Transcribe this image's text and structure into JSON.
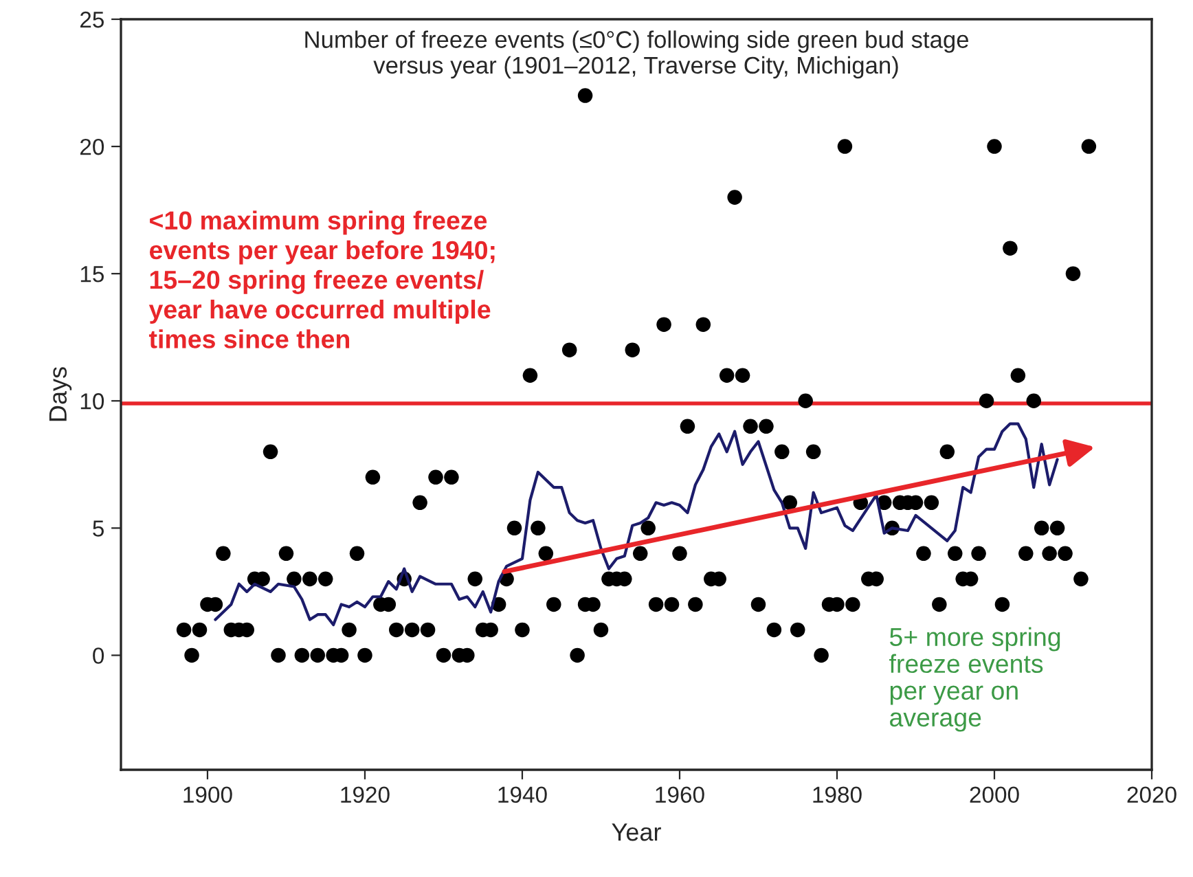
{
  "chart_data": {
    "type": "scatter",
    "title": "Number of freeze events (≤0°C) following side green bud stage\nversus year (1901–2012, Traverse City, Michigan)",
    "xlabel": "Year",
    "ylabel": "Days",
    "xlim": [
      1889,
      2020
    ],
    "xticks": [
      1900,
      1920,
      1940,
      1960,
      1980,
      2000,
      2020
    ],
    "ylim": [
      -4.5,
      25
    ],
    "yticks": [
      0,
      5,
      10,
      15,
      20,
      25
    ],
    "grid": false,
    "legend": false,
    "series": [
      {
        "color": "#000000",
        "marker": "circle",
        "x": [
          1897,
          1898,
          1899,
          1900,
          1901,
          1902,
          1903,
          1904,
          1905,
          1906,
          1907,
          1908,
          1909,
          1910,
          1911,
          1912,
          1913,
          1914,
          1915,
          1916,
          1917,
          1918,
          1919,
          1920,
          1921,
          1922,
          1923,
          1924,
          1925,
          1926,
          1927,
          1928,
          1929,
          1930,
          1931,
          1932,
          1933,
          1934,
          1935,
          1936,
          1937,
          1938,
          1939,
          1940,
          1941,
          1942,
          1943,
          1944,
          1946,
          1947,
          1948,
          1948,
          1949,
          1950,
          1951,
          1952,
          1953,
          1954,
          1955,
          1956,
          1957,
          1958,
          1959,
          1960,
          1961,
          1962,
          1963,
          1964,
          1965,
          1966,
          1967,
          1968,
          1969,
          1970,
          1971,
          1972,
          1973,
          1974,
          1975,
          1976,
          1977,
          1978,
          1979,
          1980,
          1981,
          1982,
          1983,
          1984,
          1985,
          1986,
          1987,
          1988,
          1989,
          1990,
          1991,
          1992,
          1993,
          1994,
          1995,
          1996,
          1997,
          1998,
          1999,
          2000,
          2001,
          2002,
          2003,
          2004,
          2005,
          2006,
          2007,
          2008,
          2009,
          2010,
          2011,
          2012
        ],
        "values": [
          1,
          0,
          1,
          2,
          2,
          4,
          1,
          1,
          1,
          3,
          3,
          8,
          0,
          4,
          3,
          0,
          3,
          0,
          3,
          0,
          0,
          1,
          4,
          0,
          7,
          2,
          2,
          1,
          3,
          1,
          6,
          1,
          7,
          0,
          7,
          0,
          0,
          3,
          1,
          1,
          2,
          3,
          5,
          1,
          11,
          5,
          4,
          2,
          12,
          0,
          22,
          2,
          2,
          1,
          3,
          3,
          3,
          12,
          4,
          5,
          2,
          13,
          2,
          4,
          9,
          2,
          13,
          3,
          3,
          11,
          18,
          11,
          9,
          2,
          9,
          1,
          8,
          6,
          1,
          10,
          8,
          0,
          2,
          2,
          20,
          2,
          6,
          3,
          3,
          6,
          5,
          6,
          6,
          6,
          4,
          6,
          2,
          8,
          4,
          3,
          3,
          4,
          10,
          20,
          2,
          16,
          11,
          4,
          10,
          5,
          4,
          5,
          4,
          15,
          3,
          20
        ]
      },
      {
        "type": "line",
        "color": "#1c1c6b",
        "marker": "none",
        "line_style": "solid",
        "x": [
          1901,
          1903,
          1904,
          1905,
          1906,
          1908,
          1909,
          1911,
          1912,
          1913,
          1914,
          1915,
          1916,
          1917,
          1918,
          1919,
          1920,
          1921,
          1922,
          1923,
          1924,
          1925,
          1926,
          1927,
          1929,
          1931,
          1932,
          1933,
          1934,
          1935,
          1936,
          1937,
          1938,
          1940,
          1941,
          1942,
          1944,
          1945,
          1946,
          1947,
          1948,
          1949,
          1950,
          1951,
          1952,
          1953,
          1954,
          1955,
          1956,
          1957,
          1958,
          1959,
          1960,
          1961,
          1962,
          1963,
          1964,
          1965,
          1966,
          1967,
          1968,
          1969,
          1970,
          1972,
          1973,
          1974,
          1975,
          1976,
          1977,
          1978,
          1980,
          1981,
          1982,
          1985,
          1986,
          1987,
          1989,
          1990,
          1992,
          1994,
          1995,
          1996,
          1997,
          1998,
          1999,
          2000,
          2001,
          2002,
          2003,
          2004,
          2005,
          2006,
          2007,
          2008
        ],
        "values": [
          1.4,
          2.0,
          2.8,
          2.5,
          2.8,
          2.5,
          2.8,
          2.7,
          2.2,
          1.4,
          1.6,
          1.6,
          1.2,
          2.0,
          1.9,
          2.1,
          1.9,
          2.3,
          2.3,
          2.9,
          2.6,
          3.4,
          2.5,
          3.1,
          2.8,
          2.8,
          2.2,
          2.3,
          1.9,
          2.5,
          1.7,
          2.9,
          3.5,
          3.8,
          6.1,
          7.2,
          6.6,
          6.6,
          5.6,
          5.3,
          5.2,
          5.3,
          4.2,
          3.4,
          3.8,
          3.9,
          5.1,
          5.2,
          5.4,
          6.0,
          5.9,
          6.0,
          5.9,
          5.6,
          6.7,
          7.3,
          8.2,
          8.7,
          8.0,
          8.8,
          7.5,
          8.0,
          8.4,
          6.5,
          6.0,
          5.0,
          5.0,
          4.2,
          6.4,
          5.6,
          5.8,
          5.1,
          4.9,
          6.3,
          4.8,
          5.0,
          4.9,
          5.5,
          5.0,
          4.5,
          4.9,
          6.6,
          6.4,
          7.8,
          8.1,
          8.1,
          8.8,
          9.1,
          9.1,
          8.5,
          6.6,
          8.3,
          6.7,
          7.7
        ]
      }
    ],
    "ref_lines": [
      {
        "axis": "y",
        "value": 9.9,
        "color": "#e8262a",
        "line_style": "solid"
      }
    ],
    "annotations": [
      "<10 maximum spring freeze\nevents per year before 1940;\n15–20 spring freeze events/\nyear have occurred multiple\ntimes since then",
      "5+ more spring\nfreeze events\nper year on\naverage"
    ]
  }
}
